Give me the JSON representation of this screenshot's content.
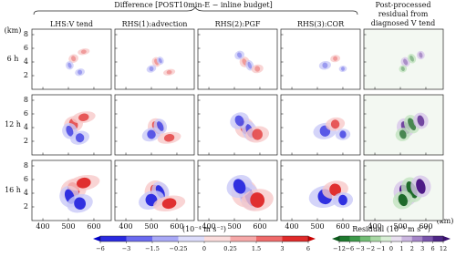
{
  "header": {
    "title": "Difference [POST10min-E − inline budget]",
    "right_title": [
      "Post-processed",
      "residual from",
      "diagnosed V tend"
    ]
  },
  "panels": {
    "columns": [
      "LHS:V tend",
      "RHS(1):advection",
      "RHS(2):PGF",
      "RHS(3):COR"
    ],
    "rows": [
      "6 h",
      "12 h",
      "16 h"
    ],
    "y_label": "(km)",
    "x_label": "(km)",
    "xlim": [
      357,
      668
    ],
    "xticks": [
      400,
      500,
      600
    ],
    "ylim": [
      0,
      8.8
    ],
    "yticks": [
      2,
      4,
      6,
      8
    ]
  },
  "colorbars": [
    {
      "label": "(10⁻⁴ m s⁻²)",
      "ticks": [
        {
          "value": -6,
          "label": "−6"
        },
        {
          "value": -3,
          "label": "−3"
        },
        {
          "value": -1.5,
          "label": "−1.5"
        },
        {
          "value": -0.25,
          "label": "−0.25"
        },
        0,
        0.25,
        1.5,
        3,
        6
      ],
      "colors": [
        "#2a2ae0",
        "#6a6af0",
        "#a8a8f6",
        "#dcdcfb",
        "#fbdcdc",
        "#f6a8a8",
        "#ef6a6a",
        "#e02a2a"
      ],
      "end_colors": [
        "#0000c8",
        "#c80000"
      ]
    },
    {
      "label": "Residual (10⁻⁵ m s⁻²)",
      "ticks": [
        {
          "value": -12,
          "label": "−12"
        },
        {
          "value": -6,
          "label": "−6"
        },
        {
          "value": -3,
          "label": "−3"
        },
        {
          "value": -2,
          "label": "−2"
        },
        {
          "value": -1,
          "label": "−1"
        },
        0,
        1,
        2,
        3,
        6,
        12
      ],
      "colors": [
        "#1e7a2e",
        "#3d9a4a",
        "#72bd75",
        "#a9d8a5",
        "#d8eed5",
        "#e8dff0",
        "#cbb6e0",
        "#a585c8",
        "#7a55ac",
        "#4e2687"
      ],
      "end_colors": [
        "#0a5a1a",
        "#3a0f70"
      ]
    }
  ]
}
